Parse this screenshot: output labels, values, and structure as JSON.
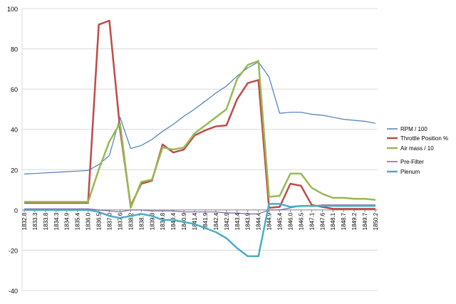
{
  "chart_data": {
    "type": "line",
    "x": [
      "1832.8",
      "1833.3",
      "1833.8",
      "1834.3",
      "1834.9",
      "1835.4",
      "1836.0",
      "1836.5",
      "1837.0",
      "1837.6",
      "1838.2",
      "1838.7",
      "1839.3",
      "1839.8",
      "1840.4",
      "1840.9",
      "1841.4",
      "1841.9",
      "1842.4",
      "1842.9",
      "1843.4",
      "1843.9",
      "1844.4",
      "1844.9",
      "1845.4",
      "1846.0",
      "1846.5",
      "1847.1",
      "1847.6",
      "1848.1",
      "1848.7",
      "1849.2",
      "1849.7",
      "1850.2"
    ],
    "ylim": [
      -40,
      100
    ],
    "yticks": [
      "-40",
      "-20",
      "0",
      "20",
      "40",
      "60",
      "80",
      "100"
    ],
    "grid": "horizontal",
    "legend": "right",
    "series": [
      {
        "name": "RPM / 100",
        "color": "#4a7ebb",
        "values": [
          17.8,
          18.1,
          18.4,
          18.7,
          19.0,
          19.3,
          19.6,
          22.5,
          27.0,
          46.0,
          30.5,
          32.0,
          35.0,
          39.0,
          42.5,
          46.5,
          50.0,
          54.0,
          58.0,
          61.5,
          66.5,
          70.5,
          73.5,
          66.0,
          48.0,
          48.5,
          48.5,
          47.5,
          47.0,
          46.0,
          45.0,
          44.5,
          44.0,
          43.0
        ]
      },
      {
        "name": "Throttle Position %",
        "color": "#be4b48",
        "values": [
          3.5,
          3.5,
          3.5,
          3.5,
          3.5,
          3.5,
          3.5,
          92.0,
          94.0,
          40.0,
          2.0,
          13.0,
          14.5,
          32.5,
          28.5,
          30.0,
          37.0,
          39.5,
          41.5,
          42.0,
          55.0,
          63.0,
          64.5,
          1.0,
          1.5,
          13.0,
          12.0,
          2.5,
          1.5,
          0.5,
          0.5,
          0.5,
          0.5,
          0.5
        ]
      },
      {
        "name": "Air mass / 10",
        "color": "#98b954",
        "values": [
          4.0,
          4.0,
          4.0,
          4.0,
          4.0,
          4.0,
          4.0,
          20.0,
          34.0,
          43.0,
          1.0,
          14.0,
          15.0,
          31.0,
          30.0,
          31.0,
          38.0,
          42.0,
          46.0,
          50.0,
          65.0,
          72.0,
          74.0,
          6.5,
          7.0,
          18.0,
          18.0,
          11.0,
          8.0,
          6.0,
          6.0,
          5.5,
          5.5,
          5.0
        ]
      },
      {
        "name": "Pre-Filter",
        "color": "#7d60a0",
        "values": [
          0.5,
          0.5,
          0.5,
          0.5,
          0.5,
          0.5,
          0.5,
          0.0,
          -0.5,
          -1.0,
          0.0,
          0.0,
          -0.5,
          -0.5,
          -0.5,
          -1.0,
          -1.0,
          -1.0,
          -1.0,
          -1.5,
          -1.5,
          -2.0,
          -2.0,
          0.0,
          0.0,
          1.0,
          2.0,
          2.0,
          2.5,
          2.5,
          2.5,
          2.5,
          2.5,
          2.5
        ]
      },
      {
        "name": "Plenum",
        "color": "#4aacc6",
        "values": [
          0.0,
          0.0,
          0.0,
          0.0,
          0.0,
          0.0,
          0.0,
          -1.0,
          -3.0,
          -4.0,
          -3.0,
          -2.0,
          -3.0,
          -5.0,
          -5.0,
          -6.0,
          -7.0,
          -9.0,
          -11.0,
          -14.0,
          -19.0,
          -23.0,
          -23.0,
          3.0,
          3.0,
          1.5,
          2.0,
          2.0,
          2.0,
          2.0,
          2.0,
          2.0,
          2.0,
          2.0
        ]
      }
    ]
  }
}
